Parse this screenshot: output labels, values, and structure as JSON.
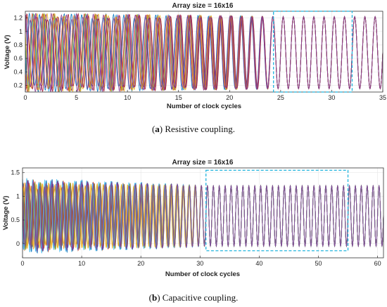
{
  "chart_data": [
    {
      "type": "line",
      "title": "Array size = 16x16",
      "xlabel": "Number of clock cycles",
      "ylabel": "Voltage (V)",
      "xlim": [
        0,
        35
      ],
      "ylim": [
        0.1,
        1.3
      ],
      "xticks": [
        0,
        5,
        10,
        15,
        20,
        25,
        30,
        35
      ],
      "yticks": [
        0.2,
        0.4,
        0.6,
        0.8,
        1,
        1.2
      ],
      "waveform": {
        "period": 1.0,
        "low": 0.15,
        "high": 1.22,
        "sync_cycle": 24.5
      },
      "highlight": {
        "x": [
          24.3,
          32
        ],
        "y": [
          0.1,
          1.3
        ]
      },
      "caption_label": "a",
      "caption_text": " Resistive coupling."
    },
    {
      "type": "line",
      "title": "Array size = 16x16",
      "xlabel": "Number of clock cycles",
      "ylabel": "Voltage (V)",
      "xlim": [
        0,
        61
      ],
      "ylim": [
        -0.3,
        1.6
      ],
      "xticks": [
        0,
        10,
        20,
        30,
        40,
        50,
        60
      ],
      "yticks": [
        0,
        0.5,
        1,
        1.5
      ],
      "waveform": {
        "period": 1.0,
        "low": -0.05,
        "high": 1.22,
        "sync_cycle": 31
      },
      "highlight": {
        "x": [
          31,
          55
        ],
        "y": [
          -0.15,
          1.55
        ]
      },
      "caption_label": "b",
      "caption_text": " Capacitive coupling."
    }
  ]
}
